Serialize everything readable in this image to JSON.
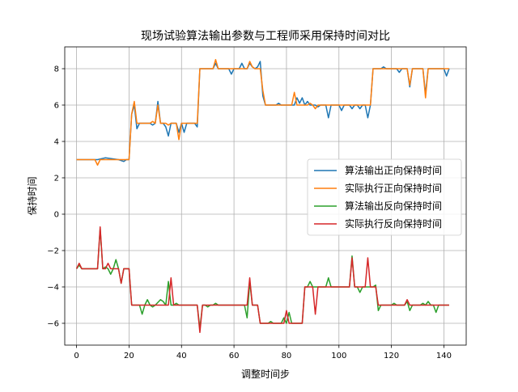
{
  "chart_data": {
    "type": "line",
    "title": "现场试验算法输出参数与工程师采用保持时间对比",
    "xlabel": "调整时间步",
    "ylabel": "保持时间",
    "xlim": [
      -4.5,
      148.5
    ],
    "ylim": [
      -7.2,
      9.2
    ],
    "xticks": [
      0,
      20,
      40,
      60,
      80,
      100,
      120,
      140
    ],
    "yticks": [
      -6,
      -4,
      -2,
      0,
      2,
      4,
      6,
      8
    ],
    "grid": true,
    "legend_position": "center-right",
    "series": [
      {
        "name": "算法输出正向保持时间",
        "color": "#1f77b4",
        "points": [
          [
            0,
            3
          ],
          [
            8,
            3
          ],
          [
            11,
            3.1
          ],
          [
            16,
            3
          ],
          [
            18,
            2.9
          ],
          [
            19,
            3
          ],
          [
            20,
            3
          ],
          [
            21,
            5.5
          ],
          [
            22,
            6
          ],
          [
            23,
            4.7
          ],
          [
            24,
            5
          ],
          [
            28,
            5
          ],
          [
            29,
            4.9
          ],
          [
            30,
            5
          ],
          [
            31,
            6.2
          ],
          [
            32,
            5
          ],
          [
            33,
            5
          ],
          [
            34,
            4.8
          ],
          [
            35,
            4.3
          ],
          [
            36,
            5
          ],
          [
            38,
            5
          ],
          [
            39,
            4.5
          ],
          [
            40,
            5
          ],
          [
            41,
            4.5
          ],
          [
            42,
            5
          ],
          [
            45,
            5
          ],
          [
            46,
            4.8
          ],
          [
            47,
            8
          ],
          [
            52,
            8
          ],
          [
            53,
            8.3
          ],
          [
            54,
            8
          ],
          [
            58,
            8
          ],
          [
            59,
            7.7
          ],
          [
            60,
            8
          ],
          [
            62,
            8
          ],
          [
            63,
            8.3
          ],
          [
            64,
            8
          ],
          [
            65,
            8
          ],
          [
            66,
            8.3
          ],
          [
            67,
            8.1
          ],
          [
            68,
            8
          ],
          [
            69,
            8.1
          ],
          [
            70,
            8.4
          ],
          [
            71,
            6.5
          ],
          [
            72,
            6
          ],
          [
            76,
            6
          ],
          [
            77,
            6.1
          ],
          [
            78,
            6
          ],
          [
            83,
            6
          ],
          [
            84,
            6.4
          ],
          [
            85,
            6.1
          ],
          [
            86,
            6.4
          ],
          [
            87,
            6
          ],
          [
            88,
            6.2
          ],
          [
            89,
            6
          ],
          [
            91,
            6
          ],
          [
            92,
            5.9
          ],
          [
            93,
            6
          ],
          [
            95,
            6
          ],
          [
            96,
            5.3
          ],
          [
            97,
            6
          ],
          [
            100,
            6
          ],
          [
            101,
            5.7
          ],
          [
            102,
            6
          ],
          [
            104,
            6
          ],
          [
            105,
            5.8
          ],
          [
            106,
            6
          ],
          [
            107,
            6
          ],
          [
            108,
            5.8
          ],
          [
            109,
            6
          ],
          [
            110,
            6
          ],
          [
            111,
            5.3
          ],
          [
            112,
            6
          ],
          [
            113,
            8
          ],
          [
            116,
            8
          ],
          [
            117,
            8.1
          ],
          [
            118,
            8
          ],
          [
            122,
            8
          ],
          [
            123,
            7.8
          ],
          [
            124,
            8
          ],
          [
            126,
            8
          ],
          [
            127,
            7
          ],
          [
            128,
            8
          ],
          [
            132,
            8
          ],
          [
            133,
            6.6
          ],
          [
            134,
            8
          ],
          [
            140,
            8
          ],
          [
            141,
            7.6
          ],
          [
            142,
            8
          ]
        ]
      },
      {
        "name": "实际执行正向保持时间",
        "color": "#ff7f0e",
        "points": [
          [
            0,
            3
          ],
          [
            7,
            3
          ],
          [
            8,
            2.7
          ],
          [
            9,
            3
          ],
          [
            20,
            3
          ],
          [
            21,
            5.5
          ],
          [
            22,
            6.2
          ],
          [
            23,
            5
          ],
          [
            28,
            5
          ],
          [
            29,
            5.1
          ],
          [
            30,
            5
          ],
          [
            31,
            6
          ],
          [
            32,
            5
          ],
          [
            34,
            5
          ],
          [
            35,
            4.9
          ],
          [
            36,
            5
          ],
          [
            38,
            5
          ],
          [
            39,
            4.1
          ],
          [
            40,
            5
          ],
          [
            46,
            5
          ],
          [
            47,
            8
          ],
          [
            52,
            8
          ],
          [
            53,
            8.5
          ],
          [
            54,
            8
          ],
          [
            64,
            8
          ],
          [
            65,
            8
          ],
          [
            66,
            8.4
          ],
          [
            67,
            8.1
          ],
          [
            68,
            8
          ],
          [
            70,
            8
          ],
          [
            71,
            6.8
          ],
          [
            72,
            6
          ],
          [
            82,
            6
          ],
          [
            83,
            6.7
          ],
          [
            84,
            6
          ],
          [
            88,
            6
          ],
          [
            89,
            6.1
          ],
          [
            90,
            6
          ],
          [
            91,
            5.8
          ],
          [
            92,
            6
          ],
          [
            112,
            6
          ],
          [
            113,
            8
          ],
          [
            126,
            8
          ],
          [
            127,
            7.1
          ],
          [
            128,
            8
          ],
          [
            132,
            8
          ],
          [
            133,
            6.4
          ],
          [
            134,
            8
          ],
          [
            142,
            8
          ]
        ]
      },
      {
        "name": "算法输出反向保持时间",
        "color": "#2ca02c",
        "points": [
          [
            0,
            -3
          ],
          [
            1,
            -2.8
          ],
          [
            2,
            -3
          ],
          [
            8,
            -3
          ],
          [
            9,
            -0.8
          ],
          [
            10,
            -3
          ],
          [
            11,
            -2.9
          ],
          [
            12,
            -3
          ],
          [
            13,
            -3.3
          ],
          [
            14,
            -3
          ],
          [
            15,
            -2.5
          ],
          [
            16,
            -3
          ],
          [
            17,
            -3.8
          ],
          [
            18,
            -3
          ],
          [
            20,
            -3
          ],
          [
            21,
            -5
          ],
          [
            24,
            -5
          ],
          [
            25,
            -5.5
          ],
          [
            26,
            -5
          ],
          [
            27,
            -4.7
          ],
          [
            28,
            -5
          ],
          [
            29,
            -5.1
          ],
          [
            30,
            -5
          ],
          [
            32,
            -4.7
          ],
          [
            33,
            -4.8
          ],
          [
            34,
            -5
          ],
          [
            35,
            -3.7
          ],
          [
            36,
            -5
          ],
          [
            37,
            -5
          ],
          [
            38,
            -4.9
          ],
          [
            39,
            -5
          ],
          [
            46,
            -5
          ],
          [
            47,
            -6.3
          ],
          [
            48,
            -5
          ],
          [
            49,
            -5
          ],
          [
            50,
            -5.1
          ],
          [
            51,
            -5
          ],
          [
            52,
            -5
          ],
          [
            53,
            -4.9
          ],
          [
            54,
            -5
          ],
          [
            64,
            -5
          ],
          [
            65,
            -5.7
          ],
          [
            66,
            -3.7
          ],
          [
            67,
            -5
          ],
          [
            69,
            -5
          ],
          [
            70,
            -6
          ],
          [
            73,
            -6
          ],
          [
            74,
            -5.9
          ],
          [
            75,
            -6
          ],
          [
            78,
            -6
          ],
          [
            79,
            -5.7
          ],
          [
            80,
            -6
          ],
          [
            81,
            -5.4
          ],
          [
            82,
            -6
          ],
          [
            86,
            -6
          ],
          [
            87,
            -4
          ],
          [
            88,
            -4
          ],
          [
            89,
            -3.7
          ],
          [
            90,
            -4
          ],
          [
            92,
            -4
          ],
          [
            95,
            -4
          ],
          [
            96,
            -3.5
          ],
          [
            97,
            -4
          ],
          [
            104,
            -4
          ],
          [
            105,
            -2.3
          ],
          [
            106,
            -4
          ],
          [
            107,
            -4
          ],
          [
            108,
            -4.3
          ],
          [
            109,
            -4
          ],
          [
            112,
            -4
          ],
          [
            113,
            -4
          ],
          [
            114,
            -3.9
          ],
          [
            115,
            -5.3
          ],
          [
            116,
            -5
          ],
          [
            120,
            -5
          ],
          [
            121,
            -4.9
          ],
          [
            122,
            -5
          ],
          [
            125,
            -5
          ],
          [
            126,
            -4.8
          ],
          [
            127,
            -5.3
          ],
          [
            128,
            -5
          ],
          [
            131,
            -5
          ],
          [
            132,
            -4.9
          ],
          [
            133,
            -5
          ],
          [
            134,
            -4.8
          ],
          [
            135,
            -5
          ],
          [
            136,
            -5
          ],
          [
            137,
            -5.4
          ],
          [
            138,
            -5
          ],
          [
            142,
            -5
          ]
        ]
      },
      {
        "name": "实际执行反向保持时间",
        "color": "#d62728",
        "points": [
          [
            0,
            -3
          ],
          [
            1,
            -2.7
          ],
          [
            2,
            -3
          ],
          [
            8,
            -3
          ],
          [
            9,
            -0.7
          ],
          [
            10,
            -3
          ],
          [
            11,
            -3
          ],
          [
            12,
            -2.7
          ],
          [
            13,
            -3
          ],
          [
            16,
            -3
          ],
          [
            17,
            -3.8
          ],
          [
            18,
            -3
          ],
          [
            20,
            -3
          ],
          [
            21,
            -5
          ],
          [
            35,
            -5
          ],
          [
            36,
            -3.5
          ],
          [
            37,
            -5
          ],
          [
            46,
            -5
          ],
          [
            47,
            -6.5
          ],
          [
            48,
            -5
          ],
          [
            64,
            -5
          ],
          [
            65,
            -5
          ],
          [
            66,
            -3.5
          ],
          [
            67,
            -5
          ],
          [
            69,
            -5
          ],
          [
            70,
            -6
          ],
          [
            79,
            -6
          ],
          [
            80,
            -5.3
          ],
          [
            81,
            -6
          ],
          [
            86,
            -6
          ],
          [
            87,
            -4
          ],
          [
            90,
            -4
          ],
          [
            91,
            -5.5
          ],
          [
            92,
            -4
          ],
          [
            104,
            -4
          ],
          [
            105,
            -2.4
          ],
          [
            106,
            -4
          ],
          [
            110,
            -4
          ],
          [
            111,
            -2.4
          ],
          [
            112,
            -4
          ],
          [
            114,
            -4
          ],
          [
            115,
            -5
          ],
          [
            125,
            -5
          ],
          [
            126,
            -4.7
          ],
          [
            127,
            -5
          ],
          [
            142,
            -5
          ]
        ]
      }
    ]
  }
}
